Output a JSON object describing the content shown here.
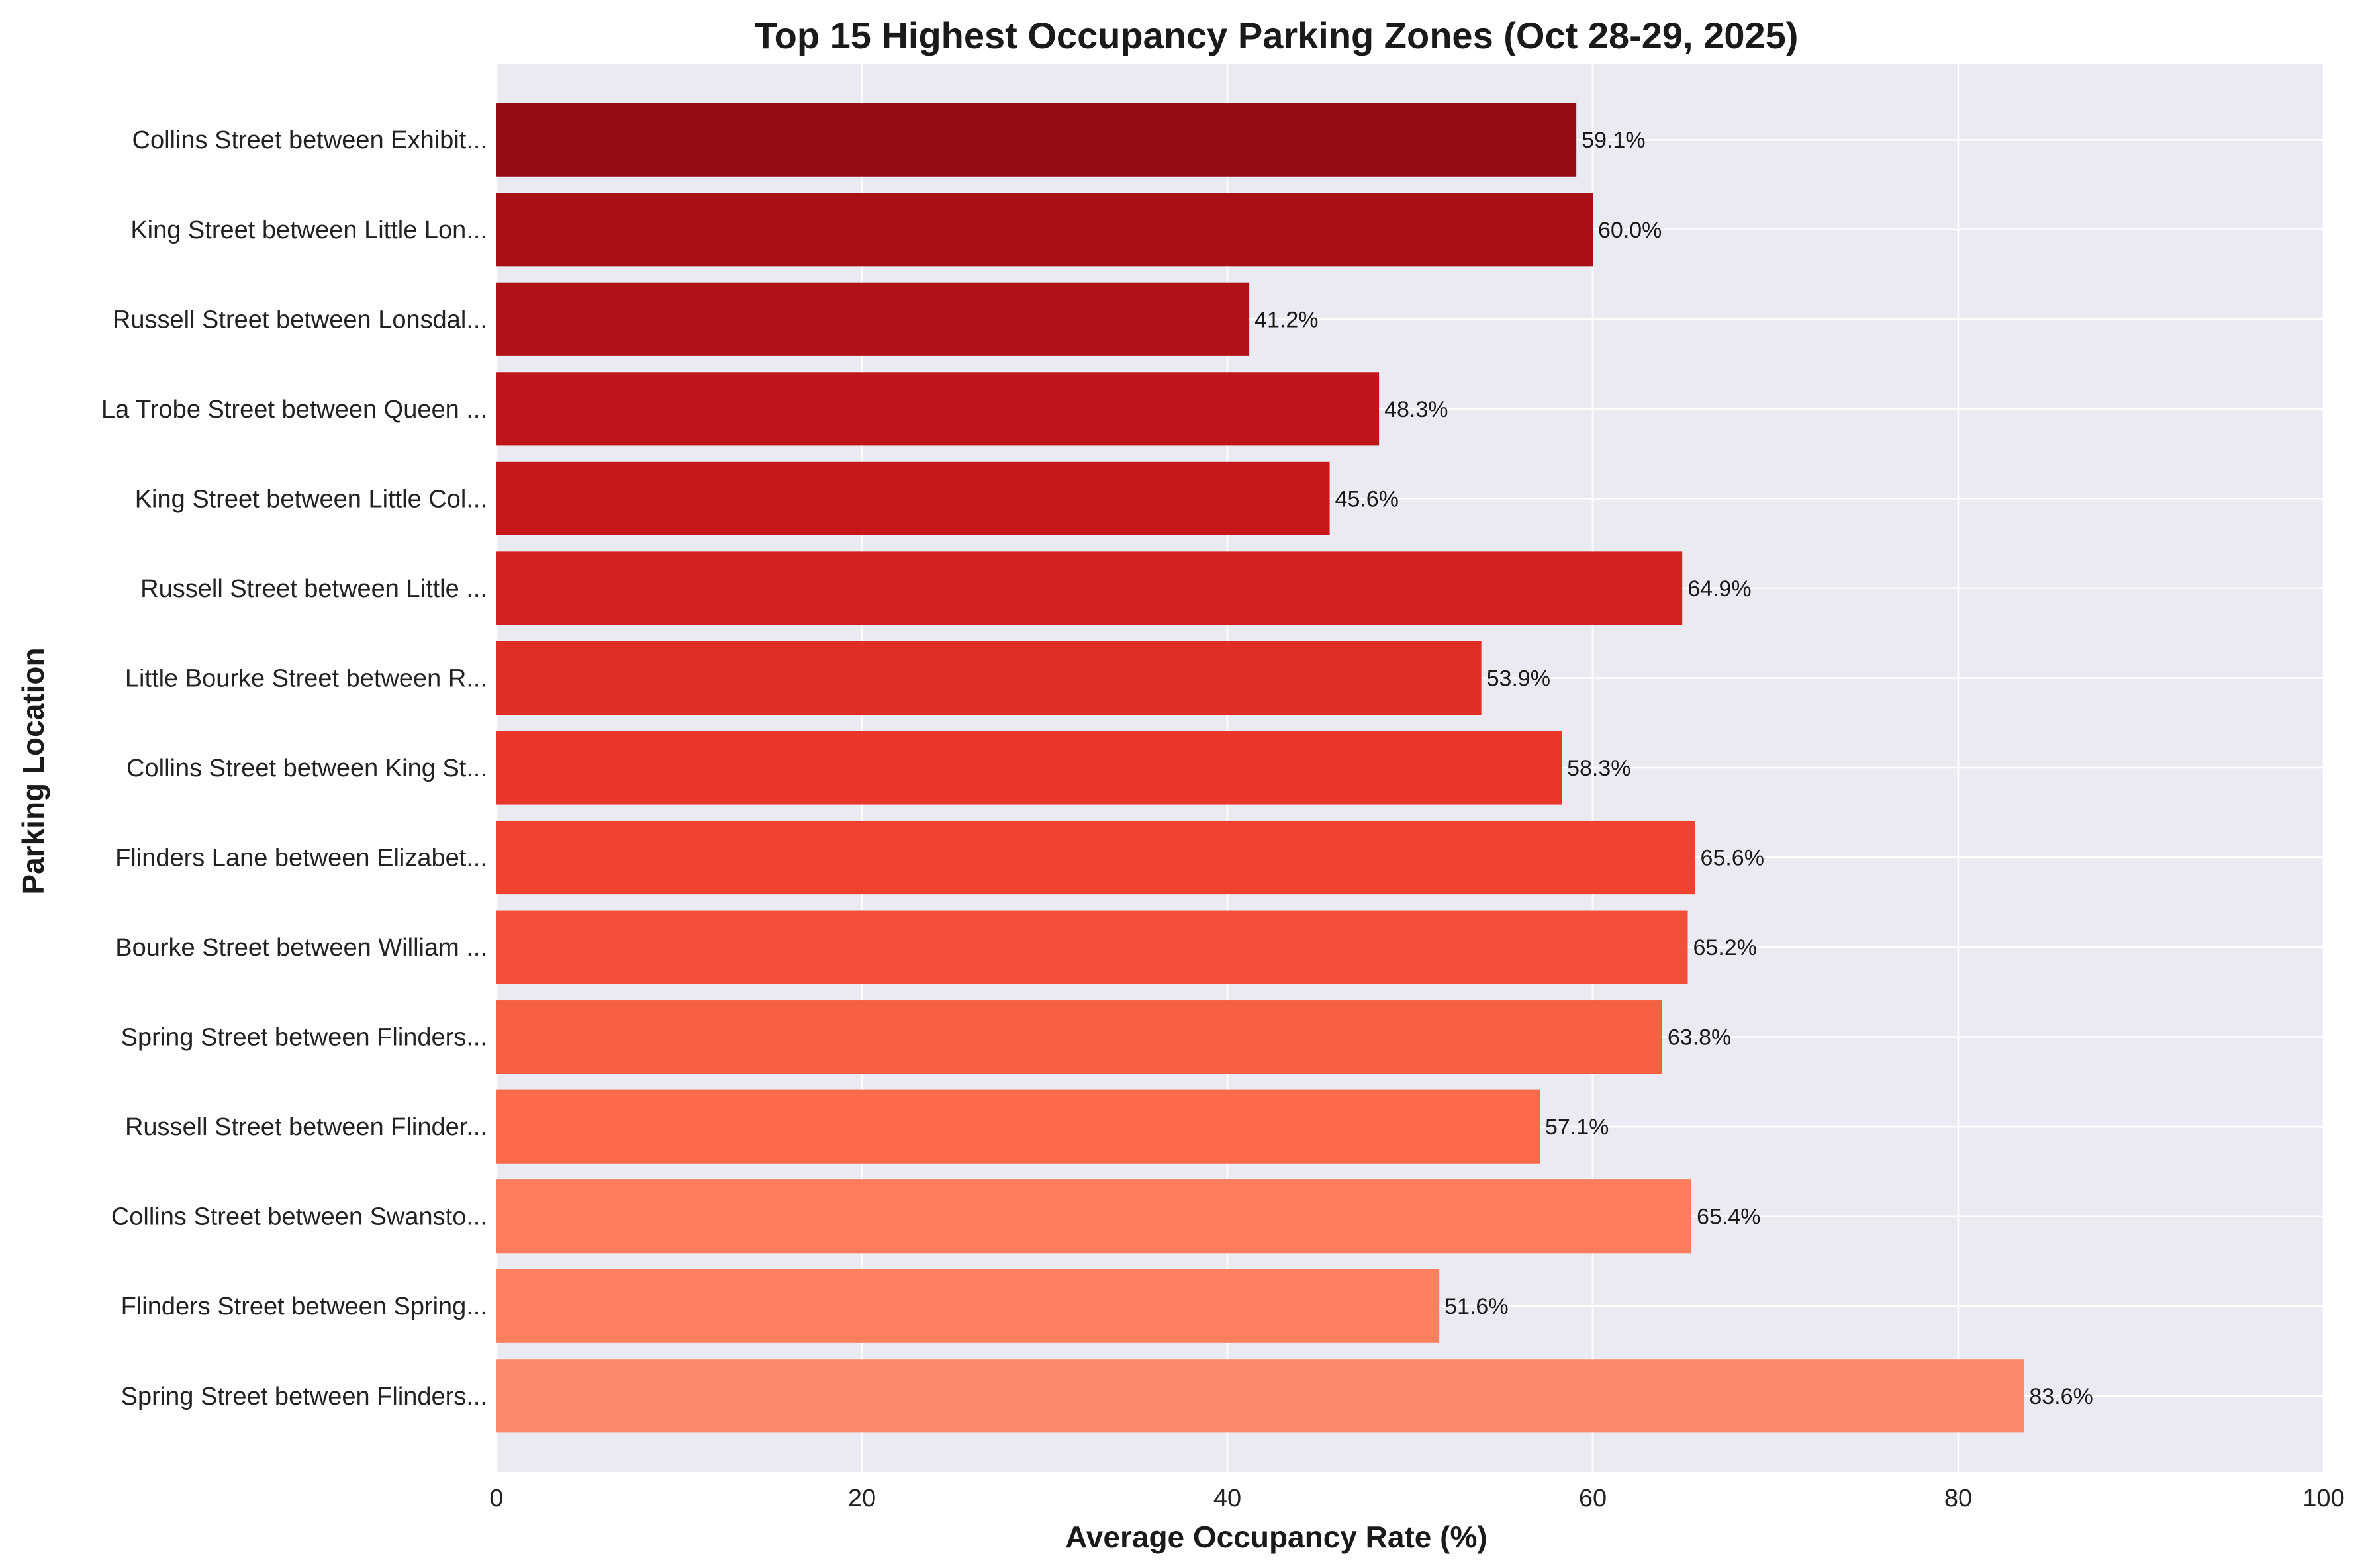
{
  "chart_data": {
    "type": "bar",
    "orientation": "horizontal",
    "title": "Top 15 Highest Occupancy Parking Zones (Oct 28-29, 2025)",
    "xlabel": "Average Occupancy Rate (%)",
    "ylabel": "Parking Location",
    "xlim": [
      0,
      100
    ],
    "xticks": [
      "0",
      "20",
      "40",
      "60",
      "80",
      "100"
    ],
    "grid": true,
    "background": "#eaeaf2",
    "categories": [
      "Collins Street between Exhibit...",
      "King Street between Little Lon...",
      "Russell Street between Lonsdal...",
      "La Trobe Street between Queen ...",
      "King Street between Little Col...",
      "Russell Street between Little ...",
      "Little Bourke Street between R...",
      "Collins Street between King St...",
      "Flinders Lane between Elizabet...",
      "Bourke Street between William ...",
      "Spring Street between Flinders...",
      "Russell Street between Flinder...",
      "Collins Street between Swansto...",
      "Flinders Street between Spring...",
      "Spring Street between Flinders..."
    ],
    "values": [
      59.1,
      60.0,
      41.2,
      48.3,
      45.6,
      64.9,
      53.9,
      58.3,
      65.6,
      65.2,
      63.8,
      57.1,
      65.4,
      51.6,
      83.6
    ],
    "value_labels": [
      "59.1%",
      "60.0%",
      "41.2%",
      "48.3%",
      "45.6%",
      "64.9%",
      "53.9%",
      "58.3%",
      "65.6%",
      "65.2%",
      "63.8%",
      "57.1%",
      "65.4%",
      "51.6%",
      "83.6%"
    ],
    "colors": [
      "#980c14",
      "#a81016",
      "#b11218",
      "#bd151a",
      "#c8171c",
      "#d42020",
      "#e02e26",
      "#ea362a",
      "#f2412f",
      "#f44f3a",
      "#f86044",
      "#fb694a",
      "#fc7c5c",
      "#fc8060",
      "#fc8a6a"
    ]
  }
}
